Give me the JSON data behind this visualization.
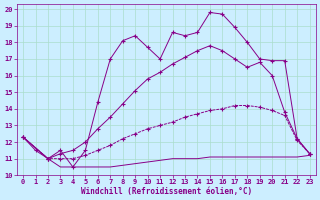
{
  "bg_color": "#cceeff",
  "grid_color": "#aaddcc",
  "line_color": "#880088",
  "xlabel": "Windchill (Refroidissement éolien,°C)",
  "xlim": [
    -0.5,
    23.5
  ],
  "ylim": [
    10,
    20.3
  ],
  "xticks": [
    0,
    1,
    2,
    3,
    4,
    5,
    6,
    7,
    8,
    9,
    10,
    11,
    12,
    13,
    14,
    15,
    16,
    17,
    18,
    19,
    20,
    21,
    22,
    23
  ],
  "yticks": [
    10,
    11,
    12,
    13,
    14,
    15,
    16,
    17,
    18,
    19,
    20
  ],
  "line1_x": [
    0,
    1,
    2,
    3,
    4,
    5,
    6,
    7,
    8,
    9,
    10,
    11,
    12,
    13,
    14,
    15,
    16,
    17,
    18,
    19,
    20,
    21,
    22,
    23
  ],
  "line1_y": [
    12.3,
    11.5,
    11.0,
    11.5,
    10.5,
    11.5,
    14.4,
    17.0,
    18.1,
    18.4,
    17.7,
    17.0,
    18.6,
    18.4,
    18.6,
    19.8,
    19.7,
    18.9,
    18.0,
    17.0,
    16.9,
    16.9,
    12.2,
    11.3
  ],
  "line2_x": [
    0,
    2,
    3,
    4,
    5,
    6,
    7,
    8,
    9,
    10,
    11,
    12,
    13,
    14,
    15,
    16,
    17,
    18,
    19,
    20,
    21,
    22,
    23
  ],
  "line2_y": [
    12.3,
    11.0,
    11.3,
    11.5,
    12.0,
    12.8,
    13.5,
    14.3,
    15.1,
    15.8,
    16.2,
    16.7,
    17.1,
    17.5,
    17.8,
    17.5,
    17.0,
    16.5,
    16.8,
    16.0,
    13.8,
    12.2,
    11.3
  ],
  "line3_x": [
    0,
    2,
    3,
    4,
    5,
    6,
    7,
    8,
    9,
    10,
    11,
    12,
    13,
    14,
    15,
    16,
    17,
    18,
    19,
    20,
    21,
    22,
    23
  ],
  "line3_y": [
    12.3,
    11.0,
    11.0,
    11.0,
    11.2,
    11.5,
    11.8,
    12.2,
    12.5,
    12.8,
    13.0,
    13.2,
    13.5,
    13.7,
    13.9,
    14.0,
    14.2,
    14.2,
    14.1,
    13.9,
    13.6,
    12.1,
    11.3
  ],
  "line4_x": [
    0,
    2,
    3,
    4,
    5,
    6,
    7,
    8,
    9,
    10,
    11,
    12,
    13,
    14,
    15,
    16,
    17,
    18,
    19,
    20,
    21,
    22,
    23
  ],
  "line4_y": [
    12.3,
    11.0,
    10.5,
    10.5,
    10.5,
    10.5,
    10.5,
    10.6,
    10.7,
    10.8,
    10.9,
    11.0,
    11.0,
    11.0,
    11.1,
    11.1,
    11.1,
    11.1,
    11.1,
    11.1,
    11.1,
    11.1,
    11.2
  ]
}
